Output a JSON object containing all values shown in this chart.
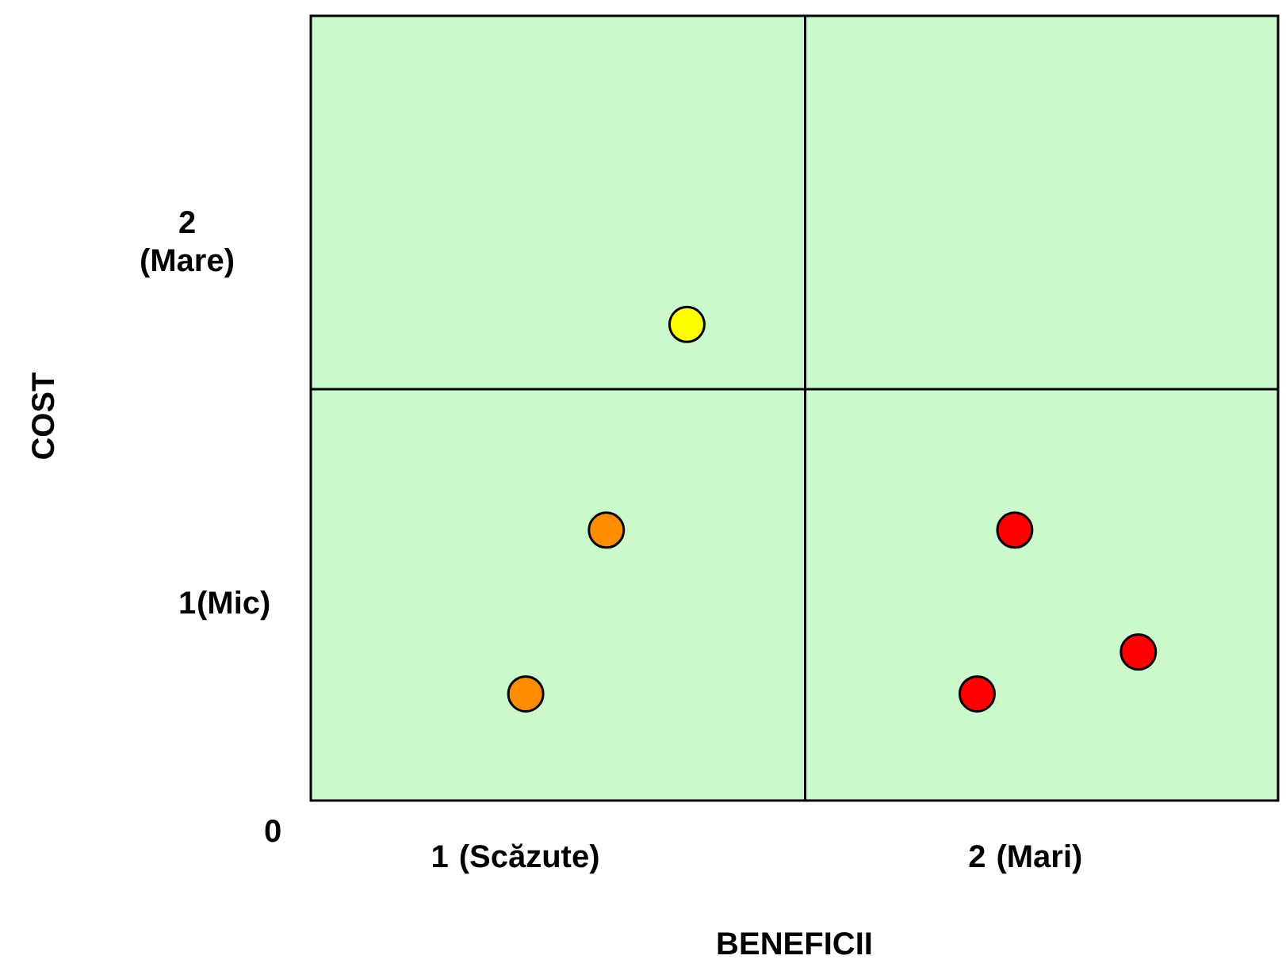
{
  "chart_data": {
    "type": "scatter",
    "xlabel": "BENEFICII",
    "ylabel": "COST",
    "xlim": [
      0.76,
      2.56
    ],
    "ylim": [
      0.48,
      2.54
    ],
    "xticks": [
      1,
      2
    ],
    "yticks": [
      1,
      2
    ],
    "annotations": [
      "0",
      "(Scăzute)",
      "(Mari)",
      "(Mic)",
      "(Mare)"
    ],
    "ref_lines": [
      {
        "axis": "x",
        "value": 1.68,
        "color": "#000000"
      },
      {
        "axis": "y",
        "value": 1.56,
        "color": "#000000"
      }
    ],
    "marker": "circle",
    "grid": false,
    "series": [
      {
        "color": "#ffff00",
        "x": [
          1.46
        ],
        "values": [
          1.73
        ]
      },
      {
        "color": "#ff8c00",
        "x": [
          1.31,
          1.16
        ],
        "values": [
          1.19,
          0.76
        ]
      },
      {
        "color": "#ff0000",
        "x": [
          2.07,
          2.3,
          2.0
        ],
        "values": [
          1.19,
          0.87,
          0.76
        ]
      }
    ]
  }
}
